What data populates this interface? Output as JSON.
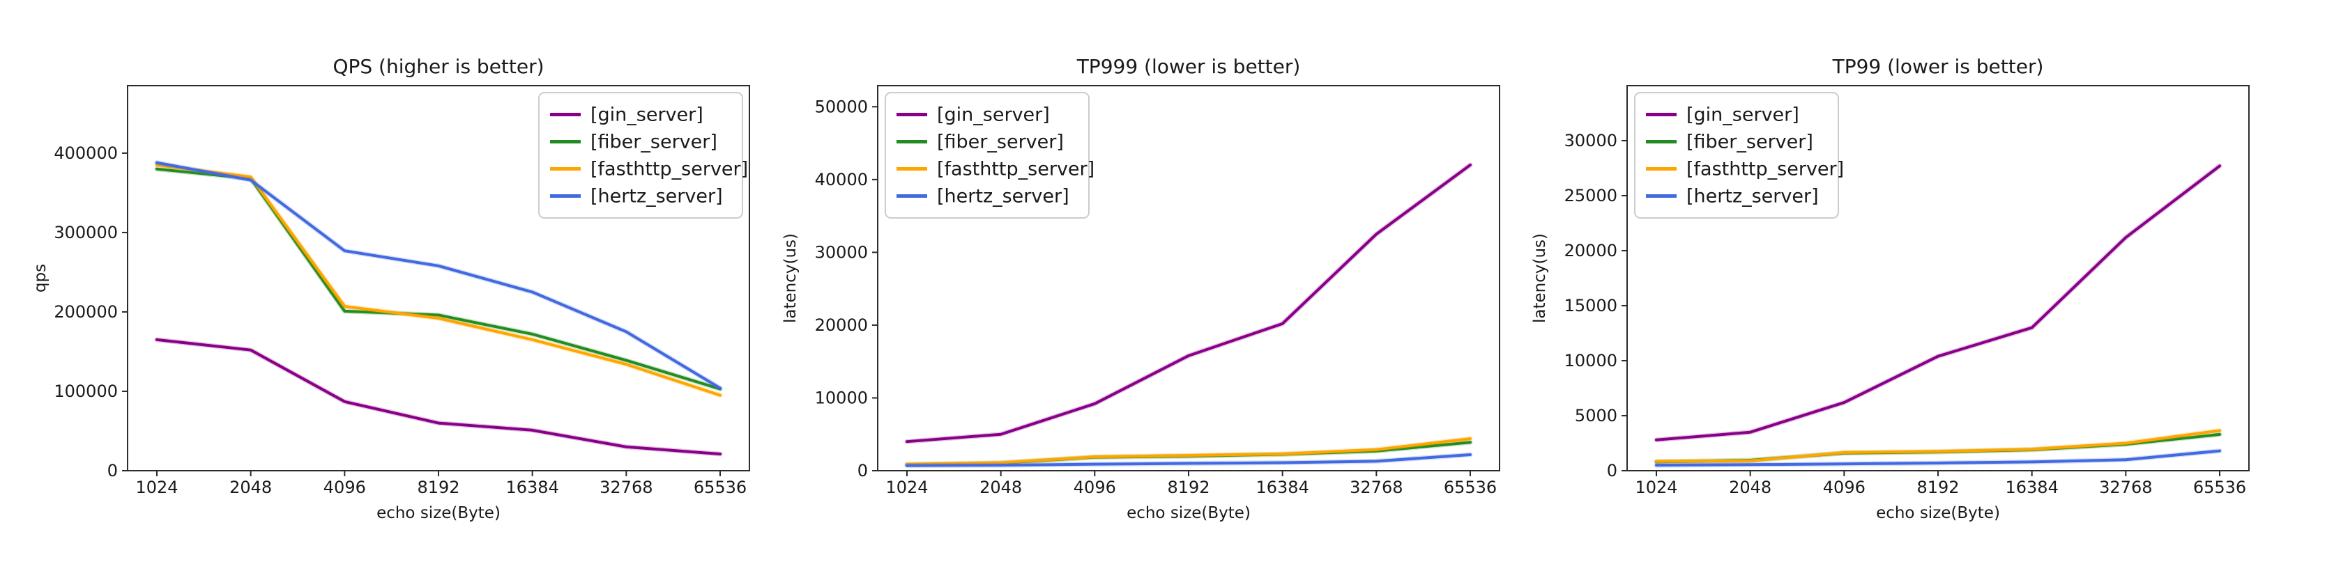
{
  "figure": {
    "background": "#ffffff",
    "description": "Benchmark comparison of gin, fiber, fasthttp and hertz HTTP servers"
  },
  "palette": {
    "gin_server": "#880088",
    "fiber_server": "#228B22",
    "fasthttp_server": "#FFA500",
    "hertz_server": "#4169E1",
    "spine": "#2b2b2b",
    "text": "#1a1a1a",
    "legend_border": "#cccccc",
    "legend_background": "#ffffff"
  },
  "legend": {
    "entries": [
      "[gin_server]",
      "[fiber_server]",
      "[fasthttp_server]",
      "[hertz_server]"
    ]
  },
  "chart_data": [
    {
      "id": "qps",
      "type": "line",
      "title": "QPS (higher is better)",
      "xlabel": "echo size(Byte)",
      "ylabel": "qps",
      "categories": [
        "1024",
        "2048",
        "4096",
        "8192",
        "16384",
        "32768",
        "65536"
      ],
      "ylim": [
        0,
        485000
      ],
      "yticks": [
        0,
        100000,
        200000,
        300000,
        400000
      ],
      "ytick_labels": [
        "0",
        "100000",
        "200000",
        "300000",
        "400000"
      ],
      "grid": false,
      "legend_position": "upper-right",
      "series": [
        {
          "name": "[gin_server]",
          "color": "#880088",
          "values": [
            165000,
            152000,
            87000,
            60000,
            51000,
            30000,
            21000
          ]
        },
        {
          "name": "[fiber_server]",
          "color": "#228B22",
          "values": [
            380000,
            368000,
            201000,
            196000,
            172000,
            139000,
            103000
          ]
        },
        {
          "name": "[fasthttp_server]",
          "color": "#FFA500",
          "values": [
            385000,
            370000,
            207000,
            192000,
            165000,
            134000,
            95000
          ]
        },
        {
          "name": "[hertz_server]",
          "color": "#4169E1",
          "values": [
            388000,
            366000,
            277000,
            258000,
            225000,
            175000,
            104000
          ]
        }
      ]
    },
    {
      "id": "tp999",
      "type": "line",
      "title": "TP999 (lower is better)",
      "xlabel": "echo size(Byte)",
      "ylabel": "latency(us)",
      "categories": [
        "1024",
        "2048",
        "4096",
        "8192",
        "16384",
        "32768",
        "65536"
      ],
      "ylim": [
        0,
        52900
      ],
      "yticks": [
        0,
        10000,
        20000,
        30000,
        40000,
        50000
      ],
      "ytick_labels": [
        "0",
        "10000",
        "20000",
        "30000",
        "40000",
        "50000"
      ],
      "grid": false,
      "legend_position": "upper-left",
      "series": [
        {
          "name": "[gin_server]",
          "color": "#880088",
          "values": [
            4000,
            5000,
            9200,
            15800,
            20200,
            32500,
            42000
          ]
        },
        {
          "name": "[fiber_server]",
          "color": "#228B22",
          "values": [
            800,
            1050,
            1850,
            2000,
            2250,
            2700,
            3900
          ]
        },
        {
          "name": "[fasthttp_server]",
          "color": "#FFA500",
          "values": [
            900,
            1100,
            1900,
            2100,
            2300,
            2900,
            4400
          ]
        },
        {
          "name": "[hertz_server]",
          "color": "#4169E1",
          "values": [
            700,
            750,
            900,
            1000,
            1100,
            1300,
            2200
          ]
        }
      ]
    },
    {
      "id": "tp99",
      "type": "line",
      "title": "TP99 (lower is better)",
      "xlabel": "echo size(Byte)",
      "ylabel": "latency(us)",
      "categories": [
        "1024",
        "2048",
        "4096",
        "8192",
        "16384",
        "32768",
        "65536"
      ],
      "ylim": [
        0,
        35000
      ],
      "yticks": [
        0,
        5000,
        10000,
        15000,
        20000,
        25000,
        30000
      ],
      "ytick_labels": [
        "0",
        "5000",
        "10000",
        "15000",
        "20000",
        "25000",
        "30000"
      ],
      "grid": false,
      "legend_position": "upper-left",
      "series": [
        {
          "name": "[gin_server]",
          "color": "#880088",
          "values": [
            2800,
            3500,
            6200,
            10400,
            13000,
            21200,
            27700
          ]
        },
        {
          "name": "[fiber_server]",
          "color": "#228B22",
          "values": [
            800,
            950,
            1600,
            1700,
            1900,
            2400,
            3300
          ]
        },
        {
          "name": "[fasthttp_server]",
          "color": "#FFA500",
          "values": [
            850,
            900,
            1650,
            1750,
            1950,
            2500,
            3650
          ]
        },
        {
          "name": "[hertz_server]",
          "color": "#4169E1",
          "values": [
            500,
            550,
            620,
            700,
            800,
            1000,
            1800
          ]
        }
      ]
    }
  ]
}
